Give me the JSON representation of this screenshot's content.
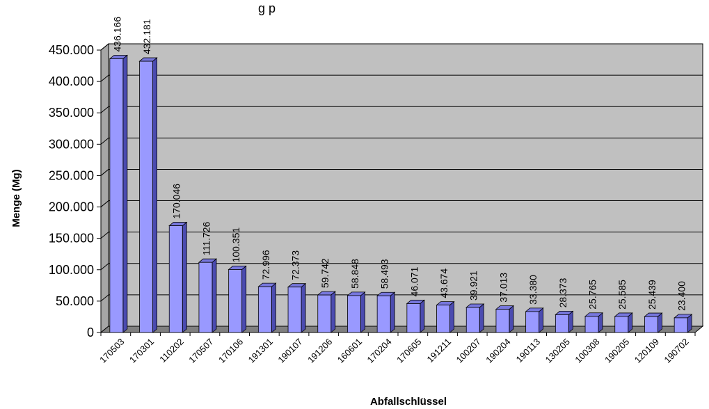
{
  "chart_data": {
    "type": "bar",
    "title": "g    p",
    "xlabel": "Abfallschlüssel",
    "ylabel": "Menge (Mg)",
    "ylim": [
      0,
      450000
    ],
    "ytick_step": 50000,
    "ytick_labels": [
      "0",
      "50.000",
      "100.000",
      "150.000",
      "200.000",
      "250.000",
      "300.000",
      "350.000",
      "400.000",
      "450.000"
    ],
    "grid": true,
    "legend": "none",
    "categories": [
      "170503",
      "170301",
      "110202",
      "170507",
      "170106",
      "191301",
      "190107",
      "191206",
      "160601",
      "170204",
      "170605",
      "191211",
      "100207",
      "190204",
      "190113",
      "130205",
      "100308",
      "190205",
      "120109",
      "190702"
    ],
    "values": [
      436166,
      432181,
      170046,
      111726,
      100351,
      72996,
      72373,
      59742,
      58848,
      58493,
      46071,
      43674,
      39921,
      37013,
      33380,
      28373,
      25765,
      25585,
      25439,
      23400
    ],
    "value_labels": [
      "436.166",
      "432.181",
      "170.046",
      "111.726",
      "100.351",
      "72.996",
      "72.373",
      "59.742",
      "58.848",
      "58.493",
      "46.071",
      "43.674",
      "39.921",
      "37.013",
      "33.380",
      "28.373",
      "25.765",
      "25.585",
      "25.439",
      "23.400"
    ],
    "colors": {
      "bar_front": "#9999ff",
      "bar_side": "#4b4bb0",
      "bar_top": "#7777dd",
      "plot_back": "#c0c0c0",
      "plot_floor": "#808080",
      "plot_wall": "#a6a6a6",
      "gridline": "#000000"
    }
  }
}
